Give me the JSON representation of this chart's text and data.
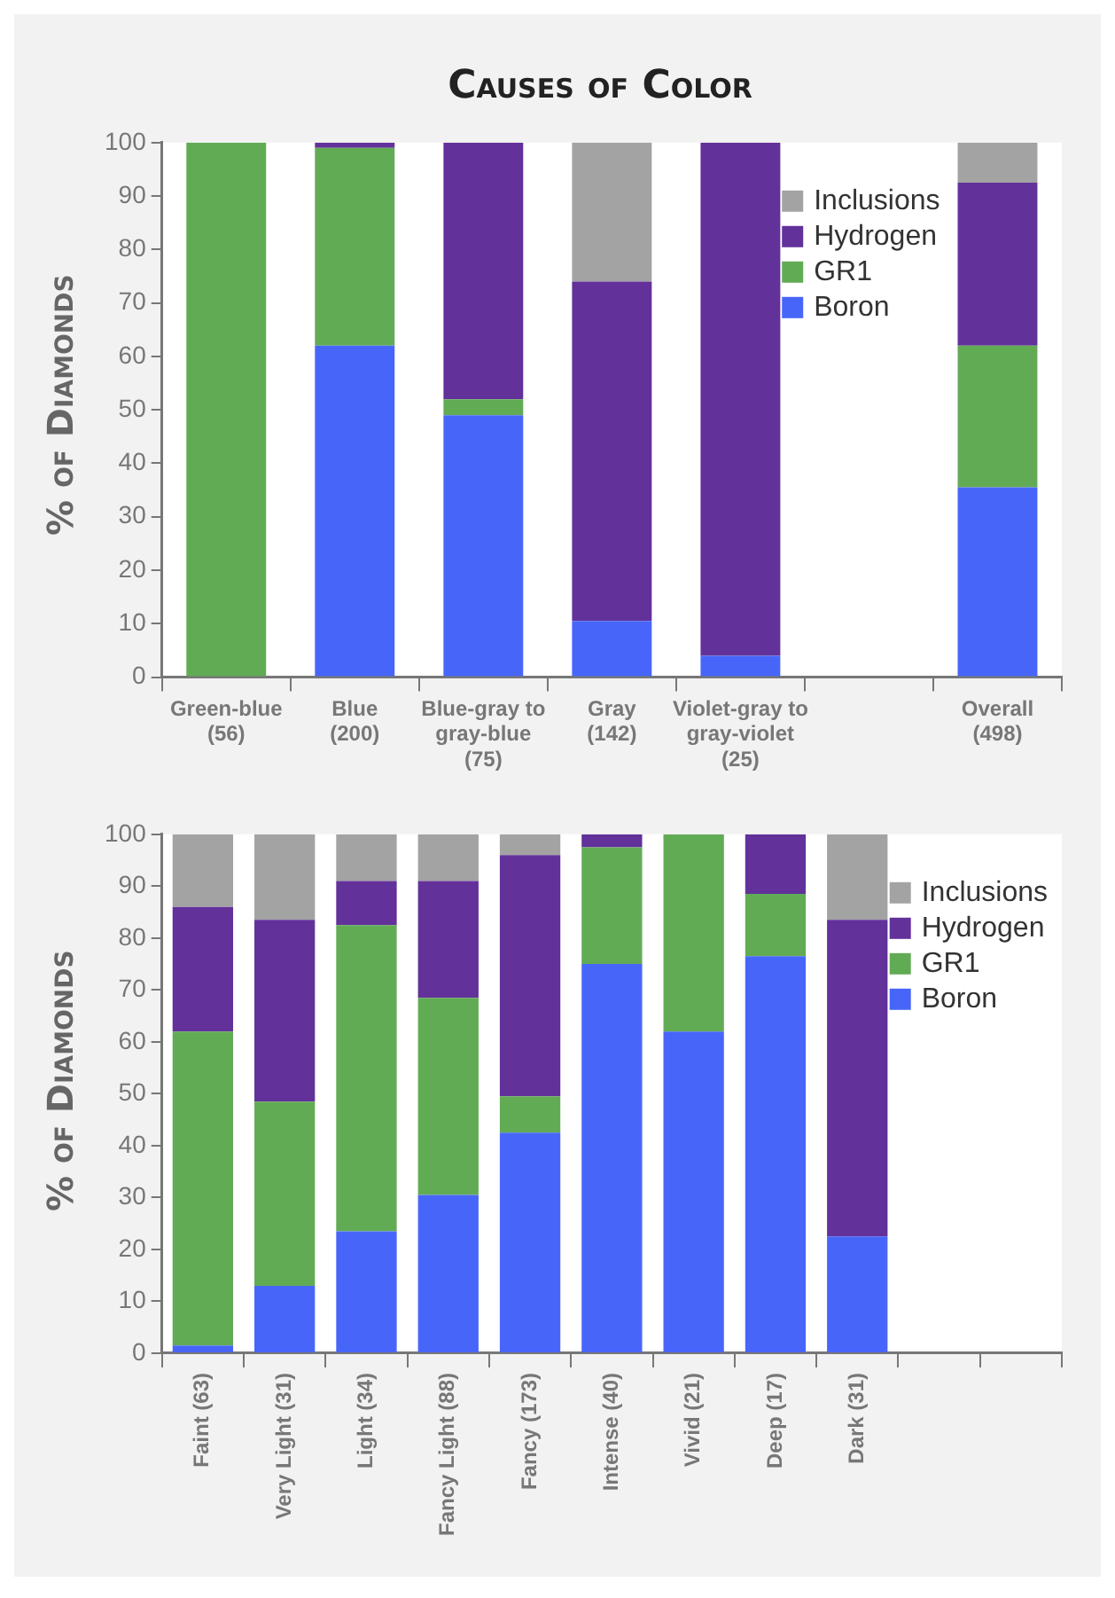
{
  "chart_data": [
    {
      "type": "bar",
      "title": "Causes of Color",
      "ylabel": "% of Diamonds",
      "stacked": true,
      "legend": "top right",
      "grid": false,
      "ylim": [
        0,
        100
      ],
      "yticks": [
        0,
        10,
        20,
        30,
        40,
        50,
        60,
        70,
        80,
        90,
        100
      ],
      "categories": [
        "Green-blue\n(56)",
        "Blue\n(200)",
        "Blue-gray to\ngray-blue\n(75)",
        "Gray\n(142)",
        "Violet-gray to\ngray-violet\n(25)",
        null,
        "Overall\n(498)"
      ],
      "series": [
        {
          "name": "Boron",
          "color": "#4766f9",
          "values": [
            0,
            62,
            49,
            10.5,
            4,
            null,
            35.5
          ]
        },
        {
          "name": "GR1",
          "color": "#62ab55",
          "values": [
            100,
            37,
            3,
            0,
            0,
            null,
            26.5
          ]
        },
        {
          "name": "Hydrogen",
          "color": "#62319a",
          "values": [
            0,
            1,
            48,
            63.5,
            96,
            null,
            30.5
          ]
        },
        {
          "name": "Inclusions",
          "color": "#a3a3a3",
          "values": [
            0,
            0,
            0,
            26,
            0,
            null,
            7.5
          ]
        }
      ]
    },
    {
      "type": "bar",
      "ylabel": "% of Diamonds",
      "stacked": true,
      "legend": "top right",
      "grid": false,
      "ylim": [
        0,
        100
      ],
      "yticks": [
        0,
        10,
        20,
        30,
        40,
        50,
        60,
        70,
        80,
        90,
        100
      ],
      "categories": [
        "Faint (63)",
        "Very Light (31)",
        "Light (34)",
        "Fancy Light (88)",
        "Fancy (173)",
        "Intense (40)",
        "Vivid (21)",
        "Deep (17)",
        "Dark (31)",
        null,
        null
      ],
      "series": [
        {
          "name": "Boron",
          "color": "#4766f9",
          "values": [
            1.5,
            13,
            23.5,
            30.5,
            42.5,
            75,
            62,
            76.5,
            22.5,
            null,
            null
          ]
        },
        {
          "name": "GR1",
          "color": "#62ab55",
          "values": [
            60.5,
            35.5,
            59,
            38,
            7,
            22.5,
            38,
            12,
            0,
            null,
            null
          ]
        },
        {
          "name": "Hydrogen",
          "color": "#62319a",
          "values": [
            24,
            35,
            8.5,
            22.5,
            46.5,
            2.5,
            0,
            11.5,
            61,
            null,
            null
          ]
        },
        {
          "name": "Inclusions",
          "color": "#a3a3a3",
          "values": [
            14,
            16.5,
            9,
            9,
            4,
            0,
            0,
            0,
            16.5,
            null,
            null
          ]
        }
      ]
    }
  ]
}
